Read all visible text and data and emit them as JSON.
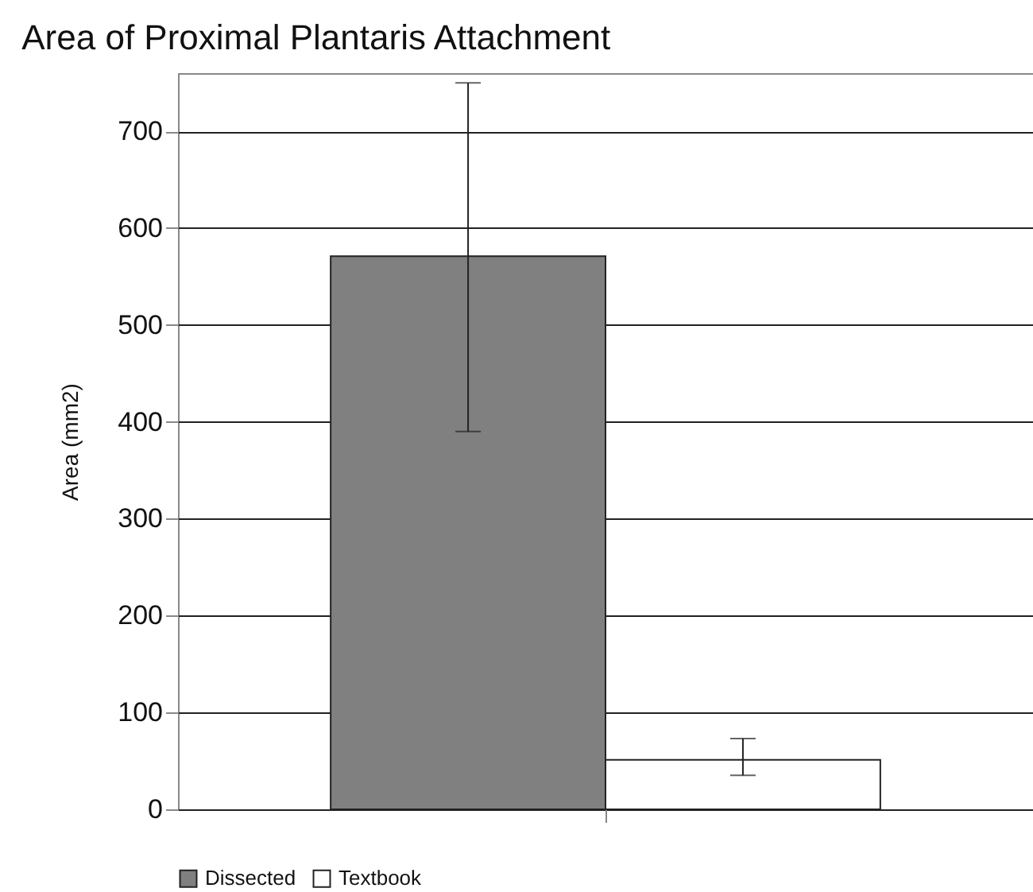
{
  "chart_data": {
    "type": "bar",
    "title": "Area of Proximal Plantaris Attachment",
    "ylabel": "Area (mm2)",
    "categories": [
      null
    ],
    "series": [
      {
        "name": "Dissected",
        "color": "#808080",
        "values": [
          571
        ],
        "errors": [
          [
            390,
            750
          ]
        ]
      },
      {
        "name": "Textbook",
        "color": "#ffffff",
        "values": [
          51
        ],
        "errors": [
          [
            35,
            73
          ]
        ]
      }
    ],
    "ylim": [
      0,
      760
    ],
    "yticks": [
      0,
      100,
      200,
      300,
      400,
      500,
      600,
      700
    ],
    "grid": "y",
    "legend": "bottom",
    "tick_labels": "y"
  }
}
